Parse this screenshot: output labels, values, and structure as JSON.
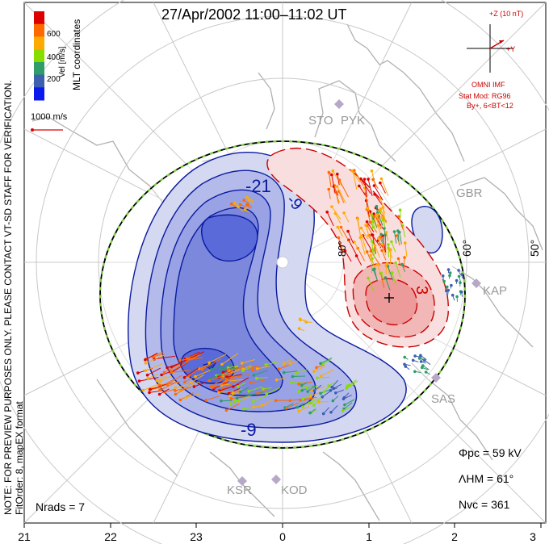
{
  "title": "27/Apr/2002  11:00–11:02  UT",
  "colorbar": {
    "label": "Vel [m/s]",
    "ticks": [
      "600",
      "400",
      "200"
    ],
    "colors": [
      "#dd0000",
      "#ff6a00",
      "#ffaa00",
      "#88dd00",
      "#2f9c6a",
      "#3d5fb0",
      "#0a1aee"
    ]
  },
  "coords_label": "MLT coordinates",
  "scale_vector_label": "1000 m/s",
  "side_note": "NOTE: FOR PREVIEW PURPOSES ONLY. PLEASE CONTACT VT-SD STAFF FOR VERIFICATION.",
  "fit_note": "FitOrder: 8,  mapEX format",
  "imf": {
    "z_label": "+Z (10 nT)",
    "y_label": "+Y",
    "model": "OMNI IMF",
    "stat_mod": "Stat Mod: RG96",
    "stat_cond": "By+, 6<BT<12"
  },
  "radars": [
    "STO",
    "PYK",
    "GBR",
    "KAP",
    "SAS",
    "KSR",
    "KOD"
  ],
  "lat_labels": [
    "80°",
    "60°",
    "50°"
  ],
  "contour_labels": [
    "-21",
    "-9",
    "-9",
    "3"
  ],
  "stats": {
    "phi_pc": "Φpc = 59 kV",
    "lambda_hm": "ΛHM = 61°",
    "n_vc": "Nvc = 361",
    "n_rads": "Nrads = 7"
  },
  "x_axis_ticks": [
    "21",
    "22",
    "23",
    "0",
    "1",
    "2",
    "3"
  ],
  "colors": {
    "negative_cell": "#5a6ad8",
    "positive_cell": "#f2a0a0",
    "negative_contour": "#0a1aa0",
    "positive_contour": "#cc0000",
    "boundary": "#7ad040",
    "grid": "#c8c8c8",
    "coast": "#b0b0b0"
  }
}
